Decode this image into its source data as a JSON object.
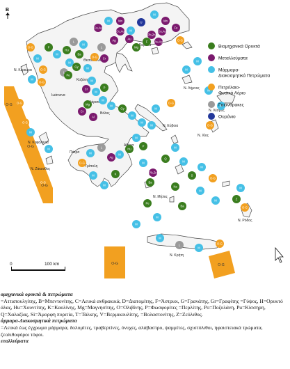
{
  "north_label": "Β",
  "scale": {
    "zero": "0",
    "label": "100 km"
  },
  "legend": [
    {
      "id": "industrial",
      "label": [
        "Βιομηχανικά Ορυκτά"
      ],
      "color": "#3a7d1e"
    },
    {
      "id": "metal",
      "label": [
        "Μεταλλεύματα"
      ],
      "color": "#7b1a6e"
    },
    {
      "id": "marble",
      "label": [
        "Μάρμαρα-",
        "Διακοσμητικά Πετρώματα"
      ],
      "color": "#45c0e6"
    },
    {
      "id": "oil",
      "label": [
        "Πετρέλαιο-",
        "Φυσικό Αέριο"
      ],
      "color": "#f2a020"
    },
    {
      "id": "lignite",
      "label": [
        "Γαιάνθρακες"
      ],
      "color": "#9a9a9a"
    },
    {
      "id": "uranium",
      "label": [
        "Ουράνιο"
      ],
      "color": "#22379a"
    }
  ],
  "places": [
    "Θεσσαλονίκη",
    "Καβάλα",
    "Κοζάνη",
    "Ιωάννινα",
    "Ν. Κέρκυρα",
    "Ν. Λήμνος",
    "Ν. Λέσβος",
    "Ν. Χίος",
    "Ν. Εύβοια",
    "Λάρισα",
    "Βόλος",
    "Αθήνα",
    "Πάτρα",
    "Ν. Κεφαλονιά",
    "Ν. Ζάκυνθος",
    "Τρίπολη",
    "Ν. Κρήτη",
    "Ν. Ρόδος",
    "Ν. Μήλος"
  ],
  "symbols": [
    {
      "code": "Cu,Au",
      "type": "metal"
    },
    {
      "code": "Mn",
      "type": "metal"
    },
    {
      "code": "U",
      "type": "uranium"
    },
    {
      "code": "Au",
      "type": "metal"
    },
    {
      "code": "M",
      "type": "marble"
    },
    {
      "code": "Pb,Zn",
      "type": "metal"
    },
    {
      "code": "Ag",
      "type": "metal"
    },
    {
      "code": "Au,Ag",
      "type": "metal"
    },
    {
      "code": "Fe",
      "type": "metal"
    },
    {
      "code": "Ni",
      "type": "metal"
    },
    {
      "code": "Cr",
      "type": "metal"
    },
    {
      "code": "Al",
      "type": "metal"
    },
    {
      "code": "O-G",
      "type": "oil"
    },
    {
      "code": "L",
      "type": "lignite"
    },
    {
      "code": "F",
      "type": "industrial"
    },
    {
      "code": "Mg",
      "type": "industrial"
    },
    {
      "code": "Ba",
      "type": "industrial"
    },
    {
      "code": "Gy",
      "type": "industrial"
    },
    {
      "code": "Pe",
      "type": "industrial"
    },
    {
      "code": "Q",
      "type": "industrial"
    },
    {
      "code": "S",
      "type": "industrial"
    },
    {
      "code": "K",
      "type": "industrial"
    },
    {
      "code": "P",
      "type": "industrial"
    },
    {
      "code": "Hu",
      "type": "industrial"
    },
    {
      "code": "Ka",
      "type": "industrial"
    },
    {
      "code": "Z",
      "type": "industrial"
    }
  ],
  "caption": {
    "h1": "ομηχανικά ορυκτά & πετρώματα",
    "p1": "=Ατταπουλγίτης, B=Μπεντονίτης, C=Λευκά ανθρακικά, D=Διατομίτης, F=Άστριοι, G=Γρανάτης, Gr=Γραφίτης =Γύψος, H=Ορυκτό άλας, Hu=Χουντίτης, K=Καολίνης, Mg=Μαγνησίτης, O=Ολιβίνης, P=Φωσφορίτες =Περλίτης, Po=Ποζολάνη, Pu=Κίσσηρη, Q=Χαλαζίας, Si=Άμορφη πυριτία, T=Τάλκης, V=Βερμικουλίτης, =Βολαστονίτης, Z=Ζεόλιθος.",
    "h2": "άρμαρα-Διακοσμητικά πετρώματα",
    "p2": "=Λευκά έως έγχρωμα μάρμαρα, δολομίτες, τραβερτίνες, όνυχες, αλάβαστρο, ψαμμίτες, σχιστόλιθοι, ηφαιστειακά τρώματα, ζεολιθοφόροι τόφοι.",
    "h3": "εταλλεύματα"
  }
}
